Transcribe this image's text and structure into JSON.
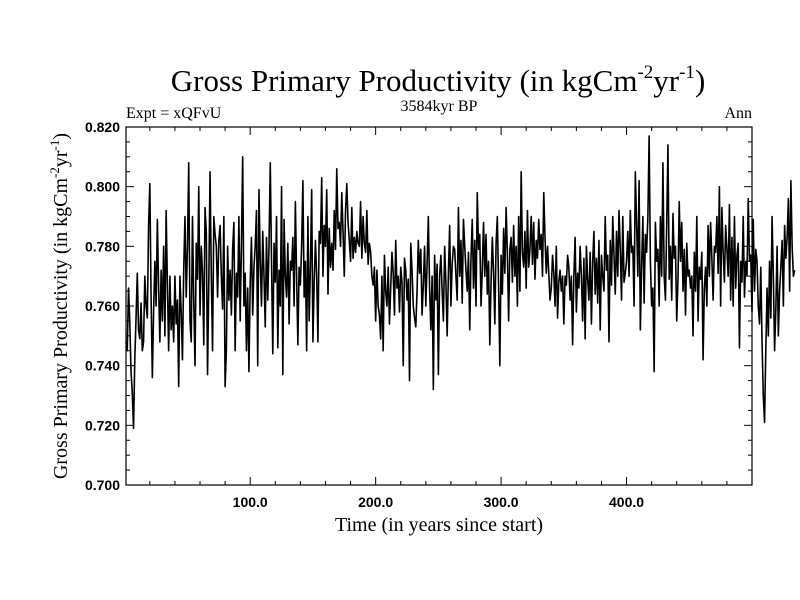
{
  "chart_data": {
    "type": "line",
    "title": "Gross Primary Productivity (in kgCm-2yr-1)",
    "title_parts": {
      "main": "Gross Primary Productivity (in kgCm",
      "sup1": "-2",
      "mid": "yr",
      "sup2": "-1",
      "end": ")"
    },
    "left_label": "Expt = xQFvU",
    "center_label": "3584kyr BP",
    "right_label": "Ann",
    "xlabel": "Time (in years since start)",
    "ylabel": "Gross Primary Productivity (in kgCm-2yr-1)",
    "ylabel_parts": {
      "main": "Gross Primary Productivity (in kgCm",
      "sup1": "-2",
      "mid": "yr",
      "sup2": "-1",
      "end": ")"
    },
    "xlim": [
      1,
      500
    ],
    "ylim": [
      0.7,
      0.82
    ],
    "x_ticks": [
      100,
      200,
      300,
      400
    ],
    "x_tick_labels": [
      "100.0",
      "200.0",
      "300.0",
      "400.0"
    ],
    "y_ticks": [
      0.7,
      0.72,
      0.74,
      0.76,
      0.78,
      0.8,
      0.82
    ],
    "y_tick_labels": [
      "0.700",
      "0.720",
      "0.740",
      "0.760",
      "0.780",
      "0.800",
      "0.820"
    ],
    "grid": false,
    "series": [
      {
        "name": "GPP annual mean",
        "x_start": 1,
        "x_step": 1,
        "values": [
          0.748,
          0.745,
          0.766,
          0.755,
          0.738,
          0.731,
          0.719,
          0.742,
          0.756,
          0.771,
          0.752,
          0.749,
          0.761,
          0.745,
          0.748,
          0.77,
          0.76,
          0.756,
          0.787,
          0.801,
          0.763,
          0.736,
          0.758,
          0.775,
          0.76,
          0.789,
          0.766,
          0.748,
          0.772,
          0.755,
          0.78,
          0.75,
          0.792,
          0.767,
          0.745,
          0.77,
          0.752,
          0.76,
          0.748,
          0.77,
          0.754,
          0.762,
          0.733,
          0.77,
          0.758,
          0.742,
          0.772,
          0.79,
          0.763,
          0.78,
          0.808,
          0.755,
          0.748,
          0.79,
          0.762,
          0.74,
          0.781,
          0.769,
          0.8,
          0.757,
          0.78,
          0.771,
          0.747,
          0.793,
          0.785,
          0.737,
          0.768,
          0.805,
          0.77,
          0.745,
          0.79,
          0.784,
          0.78,
          0.763,
          0.782,
          0.787,
          0.77,
          0.759,
          0.79,
          0.733,
          0.745,
          0.78,
          0.762,
          0.772,
          0.757,
          0.779,
          0.788,
          0.745,
          0.771,
          0.763,
          0.79,
          0.755,
          0.78,
          0.81,
          0.76,
          0.771,
          0.745,
          0.766,
          0.738,
          0.768,
          0.783,
          0.757,
          0.773,
          0.78,
          0.792,
          0.74,
          0.799,
          0.775,
          0.76,
          0.785,
          0.77,
          0.753,
          0.783,
          0.762,
          0.78,
          0.808,
          0.775,
          0.744,
          0.781,
          0.768,
          0.79,
          0.746,
          0.772,
          0.76,
          0.8,
          0.737,
          0.789,
          0.77,
          0.763,
          0.781,
          0.754,
          0.775,
          0.772,
          0.783,
          0.76,
          0.795,
          0.77,
          0.747,
          0.773,
          0.767,
          0.78,
          0.802,
          0.763,
          0.775,
          0.745,
          0.79,
          0.755,
          0.773,
          0.799,
          0.748,
          0.768,
          0.782,
          0.77,
          0.748,
          0.785,
          0.781,
          0.803,
          0.77,
          0.787,
          0.78,
          0.799,
          0.764,
          0.786,
          0.773,
          0.781,
          0.772,
          0.792,
          0.779,
          0.806,
          0.786,
          0.788,
          0.78,
          0.798,
          0.785,
          0.77,
          0.792,
          0.801,
          0.788,
          0.782,
          0.775,
          0.793,
          0.776,
          0.783,
          0.778,
          0.785,
          0.781,
          0.78,
          0.795,
          0.776,
          0.79,
          0.781,
          0.778,
          0.792,
          0.774,
          0.781,
          0.778,
          0.77,
          0.767,
          0.773,
          0.755,
          0.772,
          0.76,
          0.757,
          0.749,
          0.77,
          0.745,
          0.777,
          0.765,
          0.76,
          0.773,
          0.754,
          0.766,
          0.778,
          0.771,
          0.757,
          0.782,
          0.766,
          0.77,
          0.758,
          0.773,
          0.768,
          0.74,
          0.776,
          0.772,
          0.762,
          0.769,
          0.735,
          0.781,
          0.772,
          0.76,
          0.756,
          0.753,
          0.765,
          0.782,
          0.771,
          0.779,
          0.757,
          0.767,
          0.78,
          0.76,
          0.774,
          0.79,
          0.766,
          0.752,
          0.77,
          0.732,
          0.777,
          0.762,
          0.774,
          0.737,
          0.77,
          0.777,
          0.765,
          0.755,
          0.78,
          0.768,
          0.75,
          0.771,
          0.787,
          0.76,
          0.774,
          0.78,
          0.779,
          0.77,
          0.762,
          0.793,
          0.77,
          0.782,
          0.761,
          0.789,
          0.78,
          0.772,
          0.765,
          0.778,
          0.752,
          0.776,
          0.789,
          0.766,
          0.782,
          0.76,
          0.798,
          0.779,
          0.784,
          0.76,
          0.772,
          0.788,
          0.77,
          0.784,
          0.764,
          0.775,
          0.747,
          0.768,
          0.783,
          0.771,
          0.754,
          0.781,
          0.79,
          0.767,
          0.74,
          0.777,
          0.764,
          0.786,
          0.771,
          0.793,
          0.778,
          0.755,
          0.779,
          0.783,
          0.768,
          0.787,
          0.77,
          0.78,
          0.76,
          0.79,
          0.765,
          0.805,
          0.778,
          0.773,
          0.785,
          0.766,
          0.792,
          0.773,
          0.779,
          0.79,
          0.774,
          0.788,
          0.769,
          0.782,
          0.776,
          0.789,
          0.779,
          0.784,
          0.77,
          0.798,
          0.783,
          0.771,
          0.78,
          0.771,
          0.762,
          0.766,
          0.777,
          0.771,
          0.76,
          0.78,
          0.756,
          0.768,
          0.772,
          0.765,
          0.77,
          0.754,
          0.77,
          0.767,
          0.777,
          0.773,
          0.762,
          0.77,
          0.747,
          0.77,
          0.783,
          0.758,
          0.771,
          0.766,
          0.78,
          0.77,
          0.755,
          0.776,
          0.749,
          0.78,
          0.769,
          0.762,
          0.778,
          0.754,
          0.775,
          0.785,
          0.764,
          0.776,
          0.761,
          0.782,
          0.752,
          0.777,
          0.77,
          0.765,
          0.79,
          0.772,
          0.777,
          0.748,
          0.782,
          0.767,
          0.79,
          0.777,
          0.764,
          0.785,
          0.77,
          0.792,
          0.779,
          0.762,
          0.79,
          0.768,
          0.771,
          0.775,
          0.785,
          0.77,
          0.792,
          0.778,
          0.78,
          0.76,
          0.805,
          0.788,
          0.77,
          0.802,
          0.752,
          0.773,
          0.79,
          0.761,
          0.784,
          0.778,
          0.79,
          0.817,
          0.775,
          0.76,
          0.766,
          0.738,
          0.788,
          0.775,
          0.779,
          0.76,
          0.79,
          0.77,
          0.808,
          0.77,
          0.762,
          0.787,
          0.814,
          0.769,
          0.78,
          0.762,
          0.791,
          0.776,
          0.78,
          0.755,
          0.769,
          0.795,
          0.775,
          0.788,
          0.765,
          0.779,
          0.757,
          0.781,
          0.77,
          0.772,
          0.766,
          0.77,
          0.75,
          0.778,
          0.765,
          0.79,
          0.755,
          0.773,
          0.769,
          0.778,
          0.742,
          0.766,
          0.773,
          0.76,
          0.787,
          0.77,
          0.788,
          0.776,
          0.762,
          0.78,
          0.778,
          0.79,
          0.771,
          0.8,
          0.76,
          0.793,
          0.778,
          0.768,
          0.787,
          0.779,
          0.77,
          0.794,
          0.762,
          0.783,
          0.76,
          0.79,
          0.766,
          0.777,
          0.781,
          0.746,
          0.775,
          0.768,
          0.79,
          0.763,
          0.775,
          0.77,
          0.796,
          0.775,
          0.777,
          0.758,
          0.789,
          0.765,
          0.779,
          0.775,
          0.76,
          0.754,
          0.773,
          0.748,
          0.73,
          0.721,
          0.745,
          0.766,
          0.75,
          0.775,
          0.756,
          0.79,
          0.77,
          0.745,
          0.759,
          0.78,
          0.75,
          0.765,
          0.773,
          0.782,
          0.76,
          0.787,
          0.776,
          0.783,
          0.796,
          0.765,
          0.802,
          0.78,
          0.77,
          0.772
        ]
      }
    ]
  }
}
